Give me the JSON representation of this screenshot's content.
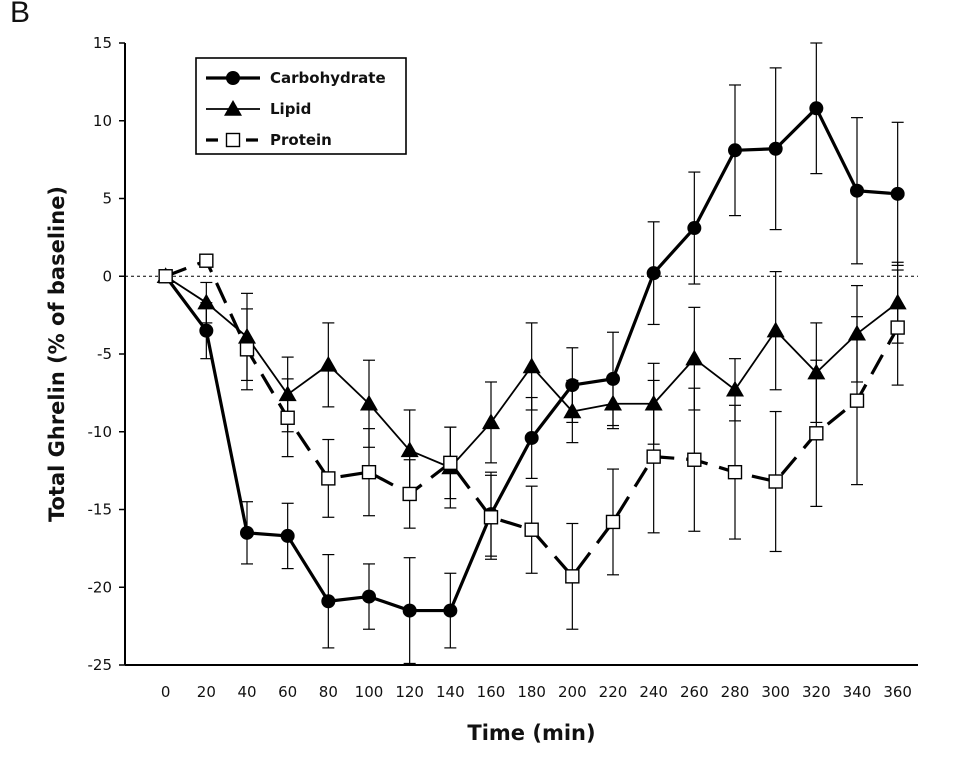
{
  "panel_label": "B",
  "chart_data": {
    "type": "line",
    "title": "",
    "xlabel": "Time (min)",
    "ylabel": "Total Ghrelin (% of baseline)",
    "x": [
      0,
      20,
      40,
      60,
      80,
      100,
      120,
      140,
      160,
      180,
      200,
      220,
      240,
      260,
      280,
      300,
      320,
      340,
      360
    ],
    "xticks": [
      "0",
      "20",
      "40",
      "60",
      "80",
      "100",
      "120",
      "140",
      "160",
      "180",
      "200",
      "220",
      "240",
      "260",
      "280",
      "300",
      "320",
      "340",
      "360"
    ],
    "yticks": [
      "15",
      "10",
      "5",
      "0",
      "-5",
      "-10",
      "-15",
      "-20",
      "-25"
    ],
    "ylim": [
      -25,
      15
    ],
    "xlim": [
      -20,
      370
    ],
    "reference_line_y": 0,
    "grid": false,
    "legend_position": "top-left",
    "series": [
      {
        "name": "Carbohydrate",
        "marker": "circle-filled",
        "line": "solid-thick",
        "color": "#000000",
        "values": [
          0,
          -3.5,
          -16.5,
          -16.7,
          -20.9,
          -20.6,
          -21.5,
          -21.5,
          -15.3,
          -10.4,
          -7.0,
          -6.6,
          0.2,
          3.1,
          8.1,
          8.2,
          10.8,
          5.5,
          5.3
        ],
        "errors": [
          0,
          1.8,
          2.0,
          2.1,
          3.0,
          2.1,
          3.4,
          2.4,
          2.7,
          2.6,
          2.4,
          3.0,
          3.3,
          3.6,
          4.2,
          5.2,
          4.2,
          4.7,
          4.6
        ]
      },
      {
        "name": "Lipid",
        "marker": "triangle-filled",
        "line": "solid-thin",
        "color": "#000000",
        "values": [
          0,
          -1.7,
          -3.9,
          -7.6,
          -5.7,
          -8.2,
          -11.2,
          -12.3,
          -9.4,
          -5.8,
          -8.7,
          -8.2,
          -8.2,
          -5.3,
          -7.3,
          -3.5,
          -6.2,
          -3.7,
          -1.7
        ],
        "errors": [
          0,
          1.3,
          2.8,
          2.4,
          2.7,
          2.8,
          2.6,
          2.6,
          2.6,
          2.8,
          2.0,
          1.6,
          2.6,
          3.3,
          2.0,
          3.8,
          3.2,
          3.1,
          2.6
        ]
      },
      {
        "name": "Protein",
        "marker": "square-open",
        "line": "dashed-thick",
        "color": "#000000",
        "values": [
          0,
          1.0,
          -4.7,
          -9.1,
          -13.0,
          -12.6,
          -14.0,
          -12.0,
          -15.5,
          -16.3,
          -19.3,
          -15.8,
          -11.6,
          -11.8,
          -12.6,
          -13.2,
          -10.1,
          -8.0,
          -3.3
        ],
        "errors": [
          0,
          0,
          2.6,
          2.5,
          2.5,
          2.8,
          2.2,
          2.3,
          2.7,
          2.8,
          3.4,
          3.4,
          4.9,
          4.6,
          4.3,
          4.5,
          4.7,
          5.4,
          3.7
        ]
      }
    ]
  }
}
